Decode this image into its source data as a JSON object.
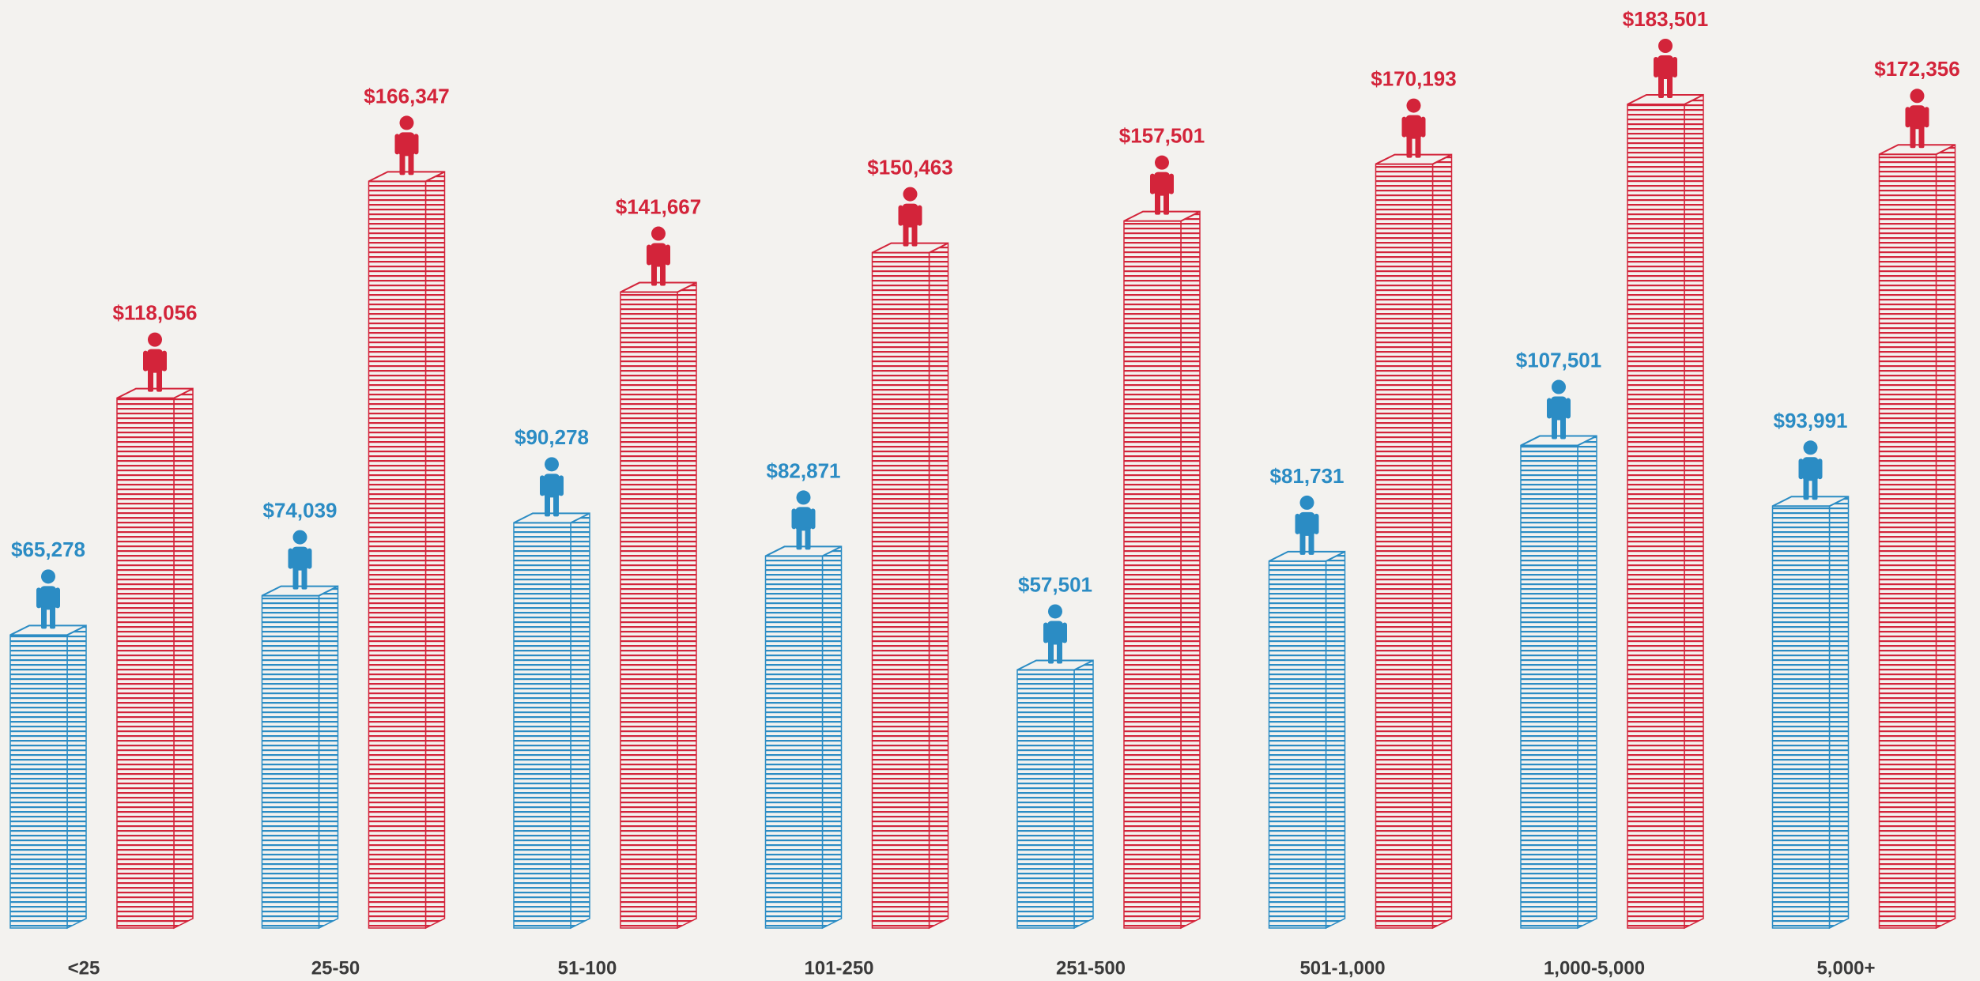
{
  "chart_data": {
    "type": "bar",
    "categories": [
      "<25",
      "25-50",
      "51-100",
      "101-250",
      "251-500",
      "501-1,000",
      "1,000-5,000",
      "5,000+"
    ],
    "series": [
      {
        "color": "#2b8cc4",
        "values": [
          65278,
          74039,
          90278,
          82871,
          57501,
          81731,
          107501,
          93991
        ],
        "value_labels": [
          "$65,278",
          "$74,039",
          "$90,278",
          "$82,871",
          "$57,501",
          "$81,731",
          "$107,501",
          "$93,991"
        ]
      },
      {
        "color": "#d3243a",
        "values": [
          118056,
          166347,
          141667,
          150463,
          157501,
          170193,
          183501,
          172356
        ],
        "value_labels": [
          "$118,056",
          "$166,347",
          "$141,667",
          "$150,463",
          "$157,501",
          "$170,193",
          "$183,501",
          "$172,356"
        ]
      }
    ]
  }
}
